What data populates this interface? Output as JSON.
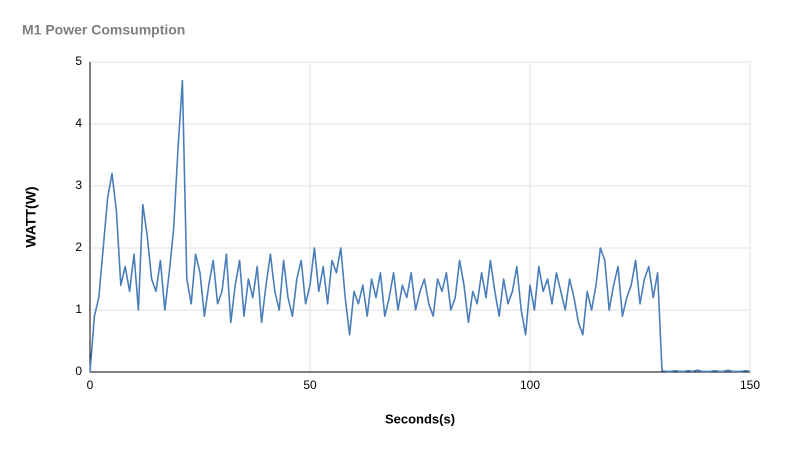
{
  "chart_data": {
    "type": "line",
    "title": "M1 Power Comsumption",
    "x_label": "Seconds(s)",
    "y_label": "WATT(W)",
    "x": [
      0,
      1,
      2,
      3,
      4,
      5,
      6,
      7,
      8,
      9,
      10,
      11,
      12,
      13,
      14,
      15,
      16,
      17,
      18,
      19,
      20,
      21,
      22,
      23,
      24,
      25,
      26,
      27,
      28,
      29,
      30,
      31,
      32,
      33,
      34,
      35,
      36,
      37,
      38,
      39,
      40,
      41,
      42,
      43,
      44,
      45,
      46,
      47,
      48,
      49,
      50,
      51,
      52,
      53,
      54,
      55,
      56,
      57,
      58,
      59,
      60,
      61,
      62,
      63,
      64,
      65,
      66,
      67,
      68,
      69,
      70,
      71,
      72,
      73,
      74,
      75,
      76,
      77,
      78,
      79,
      80,
      81,
      82,
      83,
      84,
      85,
      86,
      87,
      88,
      89,
      90,
      91,
      92,
      93,
      94,
      95,
      96,
      97,
      98,
      99,
      100,
      101,
      102,
      103,
      104,
      105,
      106,
      107,
      108,
      109,
      110,
      111,
      112,
      113,
      114,
      115,
      116,
      117,
      118,
      119,
      120,
      121,
      122,
      123,
      124,
      125,
      126,
      127,
      128,
      129,
      130,
      131,
      132,
      133,
      134,
      135,
      136,
      137,
      138,
      139,
      140,
      141,
      142,
      143,
      144,
      145,
      146,
      147,
      148,
      149,
      150
    ],
    "series": [
      {
        "name": "M1",
        "color": "#4a7ebb",
        "values": [
          0,
          0.9,
          1.2,
          2.0,
          2.8,
          3.2,
          2.6,
          1.4,
          1.7,
          1.3,
          1.9,
          1.0,
          2.7,
          2.2,
          1.5,
          1.3,
          1.8,
          1.0,
          1.6,
          2.3,
          3.6,
          4.7,
          1.5,
          1.1,
          1.9,
          1.6,
          0.9,
          1.4,
          1.8,
          1.1,
          1.3,
          1.9,
          0.8,
          1.4,
          1.8,
          0.9,
          1.5,
          1.2,
          1.7,
          0.8,
          1.4,
          1.9,
          1.3,
          1.0,
          1.8,
          1.2,
          0.9,
          1.5,
          1.8,
          1.1,
          1.4,
          2.0,
          1.3,
          1.7,
          1.1,
          1.8,
          1.6,
          2.0,
          1.2,
          0.6,
          1.3,
          1.1,
          1.4,
          0.9,
          1.5,
          1.2,
          1.6,
          0.9,
          1.2,
          1.6,
          1.0,
          1.4,
          1.2,
          1.6,
          1.0,
          1.3,
          1.5,
          1.1,
          0.9,
          1.5,
          1.3,
          1.6,
          1.0,
          1.2,
          1.8,
          1.4,
          0.8,
          1.3,
          1.1,
          1.6,
          1.2,
          1.8,
          1.3,
          0.9,
          1.5,
          1.1,
          1.3,
          1.7,
          1.0,
          0.6,
          1.4,
          1.0,
          1.7,
          1.3,
          1.5,
          1.1,
          1.6,
          1.3,
          1.0,
          1.5,
          1.2,
          0.8,
          0.6,
          1.3,
          1.0,
          1.4,
          2.0,
          1.8,
          1.0,
          1.4,
          1.7,
          0.9,
          1.2,
          1.4,
          1.8,
          1.1,
          1.5,
          1.7,
          1.2,
          1.6,
          0.02,
          0.01,
          0.01,
          0.02,
          0.01,
          0.01,
          0.02,
          0.01,
          0.03,
          0.01,
          0.01,
          0.01,
          0.02,
          0.01,
          0.01,
          0.03,
          0.01,
          0.01,
          0.01,
          0.02,
          0.01
        ]
      }
    ],
    "xlim": [
      0,
      150
    ],
    "xticks": [
      0,
      50,
      100,
      150
    ],
    "ylim": [
      0,
      5
    ],
    "yticks": [
      0,
      1,
      2,
      3,
      4,
      5
    ],
    "grid": true
  }
}
